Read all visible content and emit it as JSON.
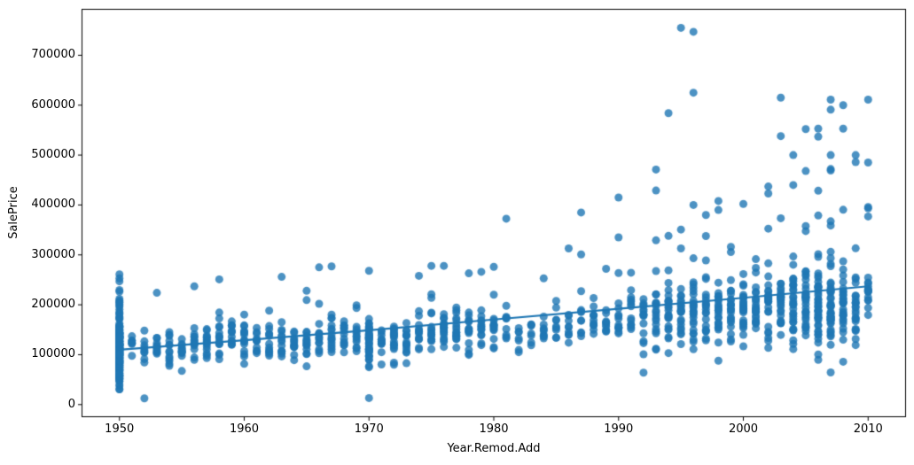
{
  "chart_data": {
    "type": "scatter",
    "title": "",
    "xlabel": "Year.Remod.Add",
    "ylabel": "SalePrice",
    "xlim": [
      1947,
      2013
    ],
    "ylim": [
      -24300,
      792100
    ],
    "xticks": [
      1950,
      1960,
      1970,
      1980,
      1990,
      2000,
      2010
    ],
    "yticks": [
      0,
      100000,
      200000,
      300000,
      400000,
      500000,
      600000,
      700000
    ],
    "grid": false,
    "legend_position": "none",
    "background_color": "#ffffff",
    "spine_color": "#000000",
    "marker": {
      "color": "#1f77b4",
      "alpha": 0.8,
      "radius": 4.5
    },
    "regression_line": {
      "color": "#1f77b4",
      "width": 2.2,
      "points": [
        [
          1950,
          110000
        ],
        [
          1960,
          129000
        ],
        [
          1970,
          149000
        ],
        [
          1980,
          170500
        ],
        [
          1990,
          192000
        ],
        [
          2000,
          214000
        ],
        [
          2010,
          237000
        ]
      ]
    },
    "cluster_columns": [
      "year",
      "count",
      "min",
      "max",
      "center",
      "spread",
      "extra_values"
    ],
    "point_clusters": [
      [
        1950,
        240,
        28000,
        240000,
        112000,
        52000,
        [
          261000,
          253000,
          247000
        ]
      ],
      [
        1951,
        7,
        88000,
        160000,
        125000,
        20000,
        []
      ],
      [
        1952,
        9,
        55000,
        151000,
        105000,
        25000,
        [
          12500
        ]
      ],
      [
        1953,
        11,
        85000,
        150000,
        118000,
        22000,
        [
          224000
        ]
      ],
      [
        1954,
        13,
        75000,
        165000,
        120000,
        25000,
        []
      ],
      [
        1955,
        12,
        43000,
        155000,
        118000,
        26000,
        []
      ],
      [
        1956,
        13,
        70000,
        175000,
        125000,
        28000,
        [
          237000
        ]
      ],
      [
        1957,
        15,
        74000,
        190000,
        128000,
        28000,
        []
      ],
      [
        1958,
        15,
        76000,
        213000,
        130000,
        30000,
        [
          251000
        ]
      ],
      [
        1959,
        13,
        80000,
        213000,
        130000,
        28000,
        []
      ],
      [
        1960,
        15,
        76000,
        220000,
        130000,
        28000,
        []
      ],
      [
        1961,
        11,
        82000,
        185000,
        128000,
        26000,
        []
      ],
      [
        1962,
        13,
        85000,
        192000,
        132000,
        27000,
        []
      ],
      [
        1963,
        13,
        84000,
        195000,
        133000,
        28000,
        [
          256000
        ]
      ],
      [
        1964,
        13,
        86000,
        186000,
        132000,
        26000,
        []
      ],
      [
        1965,
        15,
        60000,
        210000,
        135000,
        30000,
        [
          228000
        ]
      ],
      [
        1966,
        13,
        86000,
        225000,
        138000,
        30000,
        [
          275000
        ]
      ],
      [
        1967,
        15,
        82000,
        232000,
        138000,
        32000,
        [
          277000
        ]
      ],
      [
        1968,
        13,
        76000,
        215000,
        136000,
        30000,
        []
      ],
      [
        1969,
        13,
        80000,
        200000,
        135000,
        28000,
        []
      ],
      [
        1970,
        42,
        70000,
        215000,
        130000,
        38000,
        [
          13100,
          268000
        ]
      ],
      [
        1971,
        11,
        79000,
        180000,
        132000,
        26000,
        []
      ],
      [
        1972,
        19,
        75000,
        200000,
        135000,
        30000,
        []
      ],
      [
        1973,
        15,
        80000,
        215000,
        140000,
        30000,
        []
      ],
      [
        1974,
        13,
        85000,
        220000,
        142000,
        30000,
        [
          258000
        ]
      ],
      [
        1975,
        15,
        78000,
        235000,
        145000,
        32000,
        [
          278000
        ]
      ],
      [
        1976,
        19,
        75000,
        235000,
        148000,
        33000,
        [
          278000
        ]
      ],
      [
        1977,
        17,
        90000,
        248000,
        150000,
        32000,
        []
      ],
      [
        1978,
        15,
        95000,
        240000,
        152000,
        32000,
        [
          263000
        ]
      ],
      [
        1979,
        13,
        100000,
        245000,
        155000,
        32000,
        [
          266000
        ]
      ],
      [
        1980,
        13,
        100000,
        262000,
        158000,
        34000,
        [
          276000
        ]
      ],
      [
        1981,
        9,
        100000,
        225000,
        160000,
        30000,
        [
          372500
        ]
      ],
      [
        1982,
        7,
        95000,
        185000,
        145000,
        26000,
        []
      ],
      [
        1983,
        7,
        100000,
        190000,
        150000,
        26000,
        []
      ],
      [
        1984,
        9,
        110000,
        230000,
        155000,
        28000,
        [
          253000
        ]
      ],
      [
        1985,
        9,
        110000,
        258000,
        158000,
        30000,
        []
      ],
      [
        1986,
        9,
        115000,
        255000,
        162000,
        30000,
        [
          313000
        ]
      ],
      [
        1987,
        9,
        115000,
        262000,
        165000,
        32000,
        [
          385000,
          301000
        ]
      ],
      [
        1988,
        11,
        128000,
        255000,
        168000,
        30000,
        []
      ],
      [
        1989,
        11,
        128000,
        278000,
        170000,
        30000,
        []
      ],
      [
        1990,
        13,
        105000,
        306000,
        172000,
        38000,
        [
          415000,
          335000
        ]
      ],
      [
        1991,
        13,
        110000,
        320000,
        175000,
        40000,
        []
      ],
      [
        1992,
        15,
        100000,
        310000,
        175000,
        40000,
        [
          64000
        ]
      ],
      [
        1993,
        19,
        90000,
        340000,
        180000,
        45000,
        [
          471000,
          429000
        ]
      ],
      [
        1994,
        23,
        84000,
        360000,
        185000,
        50000,
        [
          584000
        ]
      ],
      [
        1995,
        23,
        87000,
        365000,
        188000,
        52000,
        [
          755000
        ]
      ],
      [
        1996,
        25,
        88000,
        345000,
        190000,
        52000,
        [
          747000,
          625000,
          400000
        ]
      ],
      [
        1997,
        21,
        82000,
        340000,
        190000,
        50000,
        [
          380000
        ]
      ],
      [
        1998,
        23,
        80000,
        345000,
        192000,
        52000,
        [
          408000,
          390000
        ]
      ],
      [
        1999,
        23,
        85000,
        340000,
        192000,
        50000,
        []
      ],
      [
        2000,
        27,
        84000,
        345000,
        195000,
        52000,
        [
          402000
        ]
      ],
      [
        2001,
        23,
        90000,
        340000,
        195000,
        52000,
        []
      ],
      [
        2002,
        25,
        88000,
        360000,
        198000,
        55000,
        [
          437000,
          423000
        ]
      ],
      [
        2003,
        27,
        86000,
        380000,
        200000,
        58000,
        [
          615000,
          538000
        ]
      ],
      [
        2004,
        29,
        90000,
        390000,
        205000,
        58000,
        [
          500000,
          440000
        ]
      ],
      [
        2005,
        33,
        87000,
        415000,
        205000,
        60000,
        [
          552000,
          468000
        ]
      ],
      [
        2006,
        43,
        80000,
        473000,
        205000,
        65000,
        [
          553000,
          537000
        ]
      ],
      [
        2007,
        45,
        75000,
        475000,
        205000,
        68000,
        [
          611000,
          591000,
          500000,
          64500
        ]
      ],
      [
        2008,
        29,
        85000,
        440000,
        205000,
        62000,
        [
          600000,
          553000
        ]
      ],
      [
        2009,
        23,
        90000,
        420000,
        205000,
        60000,
        [
          500000,
          486000
        ]
      ],
      [
        2010,
        15,
        126000,
        310000,
        220000,
        48000,
        [
          611000,
          485000,
          396000,
          393000,
          377000
        ]
      ]
    ]
  }
}
